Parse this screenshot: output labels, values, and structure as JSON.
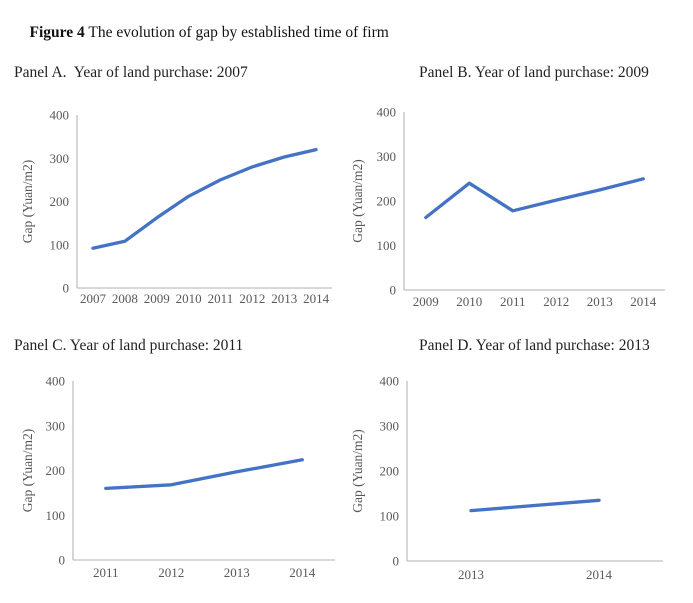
{
  "figure": {
    "label": "Figure 4",
    "caption": " The evolution of gap by established time of firm"
  },
  "chart_data": [
    {
      "type": "line",
      "title": "Panel A.  Year of land purchase: 2007",
      "categories": [
        "2007",
        "2008",
        "2009",
        "2010",
        "2011",
        "2012",
        "2013",
        "2014"
      ],
      "values": [
        92,
        108,
        162,
        212,
        250,
        280,
        303,
        320
      ],
      "xlabel": "",
      "ylabel": "Gap (Yuan/m2)",
      "ylim": [
        0,
        400
      ],
      "yticks": [
        0,
        100,
        200,
        300,
        400
      ],
      "grid": false,
      "legend": false,
      "line_color": "#4472C4",
      "axis_color": "#BFBFBF",
      "tick_label_color": "#595959"
    },
    {
      "type": "line",
      "title": "Panel B. Year of land purchase: 2009",
      "categories": [
        "2009",
        "2010",
        "2011",
        "2012",
        "2013",
        "2014"
      ],
      "values": [
        163,
        240,
        178,
        202,
        225,
        250
      ],
      "xlabel": "",
      "ylabel": "Gap (Yuan/m2)",
      "ylim": [
        0,
        400
      ],
      "yticks": [
        0,
        100,
        200,
        300,
        400
      ],
      "grid": false,
      "legend": false,
      "line_color": "#4472C4",
      "axis_color": "#BFBFBF",
      "tick_label_color": "#595959"
    },
    {
      "type": "line",
      "title": "Panel C. Year of land purchase: 2011",
      "categories": [
        "2011",
        "2012",
        "2013",
        "2014"
      ],
      "values": [
        160,
        168,
        197,
        224
      ],
      "xlabel": "",
      "ylabel": "Gap (Yuan/m2)",
      "ylim": [
        0,
        400
      ],
      "yticks": [
        0,
        100,
        200,
        300,
        400
      ],
      "grid": false,
      "legend": false,
      "line_color": "#4472C4",
      "axis_color": "#BFBFBF",
      "tick_label_color": "#595959"
    },
    {
      "type": "line",
      "title": "Panel D. Year of land purchase: 2013",
      "categories": [
        "2013",
        "2014"
      ],
      "values": [
        112,
        135
      ],
      "xlabel": "",
      "ylabel": "Gap (Yuan/m2)",
      "ylim": [
        0,
        400
      ],
      "yticks": [
        0,
        100,
        200,
        300,
        400
      ],
      "grid": false,
      "legend": false,
      "line_color": "#4472C4",
      "axis_color": "#BFBFBF",
      "tick_label_color": "#595959"
    }
  ]
}
